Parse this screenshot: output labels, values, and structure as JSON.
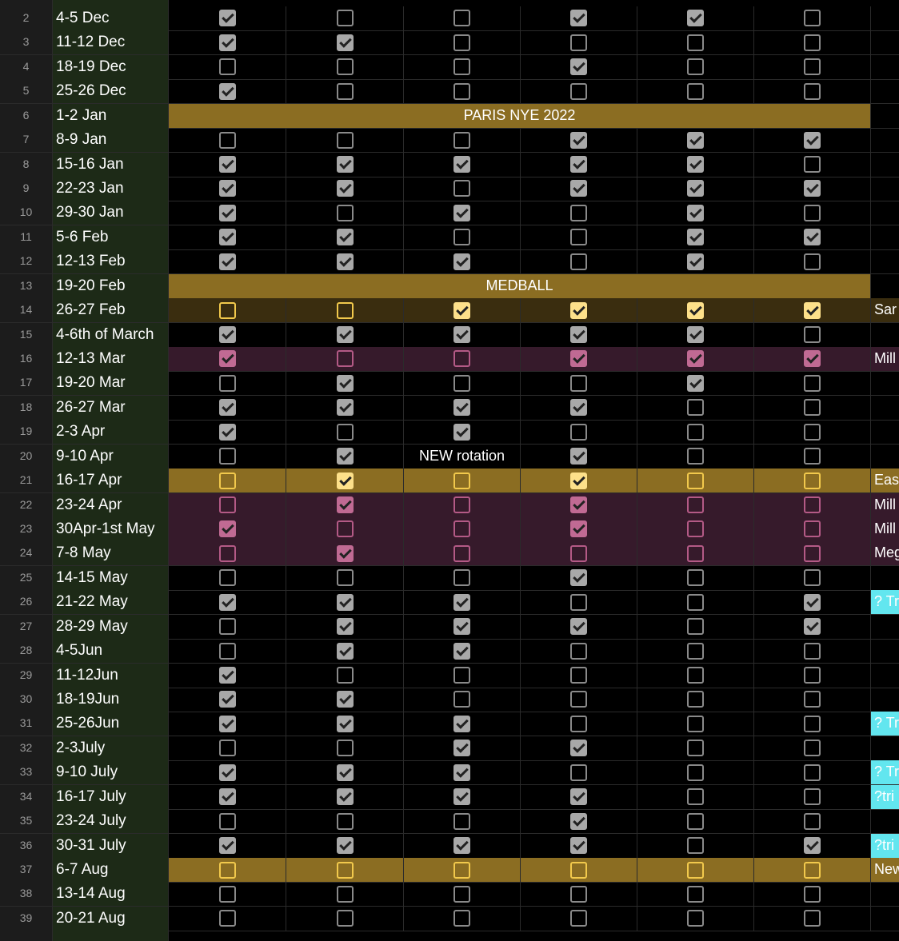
{
  "rows": [
    {
      "num": 2,
      "date": "4-5 Dec",
      "checks": [
        true,
        false,
        false,
        true,
        true,
        false
      ]
    },
    {
      "num": 3,
      "date": "11-12 Dec",
      "checks": [
        true,
        true,
        false,
        false,
        false,
        false
      ]
    },
    {
      "num": 4,
      "date": "18-19 Dec",
      "checks": [
        false,
        false,
        false,
        true,
        false,
        false
      ]
    },
    {
      "num": 5,
      "date": "25-26 Dec",
      "checks": [
        true,
        false,
        false,
        false,
        false,
        false
      ]
    },
    {
      "num": 6,
      "date": "1-2 Jan",
      "banner": "PARIS NYE 2022"
    },
    {
      "num": 7,
      "date": "8-9 Jan",
      "checks": [
        false,
        false,
        false,
        true,
        true,
        true
      ]
    },
    {
      "num": 8,
      "date": "15-16 Jan",
      "checks": [
        true,
        true,
        true,
        true,
        true,
        false
      ]
    },
    {
      "num": 9,
      "date": "22-23 Jan",
      "checks": [
        true,
        true,
        false,
        true,
        true,
        true
      ]
    },
    {
      "num": 10,
      "date": "29-30 Jan",
      "checks": [
        true,
        false,
        true,
        false,
        true,
        false
      ]
    },
    {
      "num": 11,
      "date": "5-6 Feb",
      "checks": [
        true,
        true,
        false,
        false,
        true,
        true
      ]
    },
    {
      "num": 12,
      "date": "12-13 Feb",
      "checks": [
        true,
        true,
        true,
        false,
        true,
        false
      ]
    },
    {
      "num": 13,
      "date": "19-20 Feb",
      "banner": "MEDBALL"
    },
    {
      "num": 14,
      "date": "26-27 Feb",
      "style": "dark-gold",
      "checks": [
        false,
        false,
        true,
        true,
        true,
        true
      ],
      "note": "Sar"
    },
    {
      "num": 15,
      "date": "4-6th of March",
      "checks": [
        true,
        true,
        true,
        true,
        true,
        false
      ]
    },
    {
      "num": 16,
      "date": "12-13 Mar",
      "style": "pink",
      "checks": [
        true,
        false,
        false,
        true,
        true,
        true
      ],
      "note": "Mill"
    },
    {
      "num": 17,
      "date": "19-20 Mar",
      "checks": [
        false,
        true,
        false,
        false,
        true,
        false
      ]
    },
    {
      "num": 18,
      "date": "26-27 Mar",
      "checks": [
        true,
        true,
        true,
        true,
        false,
        false
      ]
    },
    {
      "num": 19,
      "date": "2-3 Apr",
      "checks": [
        true,
        false,
        true,
        false,
        false,
        false
      ]
    },
    {
      "num": 20,
      "date": "9-10 Apr",
      "checks": [
        false,
        true,
        "NEW rotation",
        true,
        false,
        false
      ]
    },
    {
      "num": 21,
      "date": "16-17 Apr",
      "style": "gold",
      "checks": [
        false,
        true,
        false,
        true,
        false,
        false
      ],
      "note": "Eas"
    },
    {
      "num": 22,
      "date": "23-24 Apr",
      "style": "pink",
      "checks": [
        false,
        true,
        false,
        true,
        false,
        false
      ],
      "note": "Mill"
    },
    {
      "num": 23,
      "date": "30Apr-1st May",
      "style": "pink",
      "checks": [
        true,
        false,
        false,
        true,
        false,
        false
      ],
      "note": "Mill"
    },
    {
      "num": 24,
      "date": "7-8 May",
      "style": "pink",
      "checks": [
        false,
        true,
        false,
        false,
        false,
        false
      ],
      "note": "Meg"
    },
    {
      "num": 25,
      "date": "14-15 May",
      "checks": [
        false,
        false,
        false,
        true,
        false,
        false
      ]
    },
    {
      "num": 26,
      "date": "21-22 May",
      "checks": [
        true,
        true,
        true,
        false,
        false,
        true
      ],
      "note": "? Tr",
      "note_style": "cyan"
    },
    {
      "num": 27,
      "date": "28-29 May",
      "checks": [
        false,
        true,
        true,
        true,
        false,
        true
      ]
    },
    {
      "num": 28,
      "date": "4-5Jun",
      "checks": [
        false,
        true,
        true,
        false,
        false,
        false
      ]
    },
    {
      "num": 29,
      "date": "11-12Jun",
      "checks": [
        true,
        false,
        false,
        false,
        false,
        false
      ]
    },
    {
      "num": 30,
      "date": "18-19Jun",
      "checks": [
        true,
        true,
        false,
        false,
        false,
        false
      ]
    },
    {
      "num": 31,
      "date": "25-26Jun",
      "checks": [
        true,
        true,
        true,
        false,
        false,
        false
      ],
      "note": "? Tr",
      "note_style": "cyan"
    },
    {
      "num": 32,
      "date": "2-3July",
      "checks": [
        false,
        false,
        true,
        true,
        false,
        false
      ]
    },
    {
      "num": 33,
      "date": "9-10 July",
      "checks": [
        true,
        true,
        true,
        false,
        false,
        false
      ],
      "note": "? Tr",
      "note_style": "cyan"
    },
    {
      "num": 34,
      "date": "16-17 July",
      "checks": [
        true,
        true,
        true,
        true,
        false,
        false
      ],
      "note": "?tri",
      "note_style": "cyan"
    },
    {
      "num": 35,
      "date": "23-24 July",
      "checks": [
        false,
        false,
        false,
        true,
        false,
        false
      ]
    },
    {
      "num": 36,
      "date": "30-31 July",
      "checks": [
        true,
        true,
        true,
        true,
        false,
        true
      ],
      "note": "?tri",
      "note_style": "cyan"
    },
    {
      "num": 37,
      "date": "6-7 Aug",
      "style": "gold",
      "checks": [
        false,
        false,
        false,
        false,
        false,
        false
      ],
      "note": "New"
    },
    {
      "num": 38,
      "date": "13-14 Aug",
      "checks": [
        false,
        false,
        false,
        false,
        false,
        false
      ]
    },
    {
      "num": 39,
      "date": "20-21 Aug",
      "checks": [
        false,
        false,
        false,
        false,
        false,
        false
      ]
    }
  ]
}
